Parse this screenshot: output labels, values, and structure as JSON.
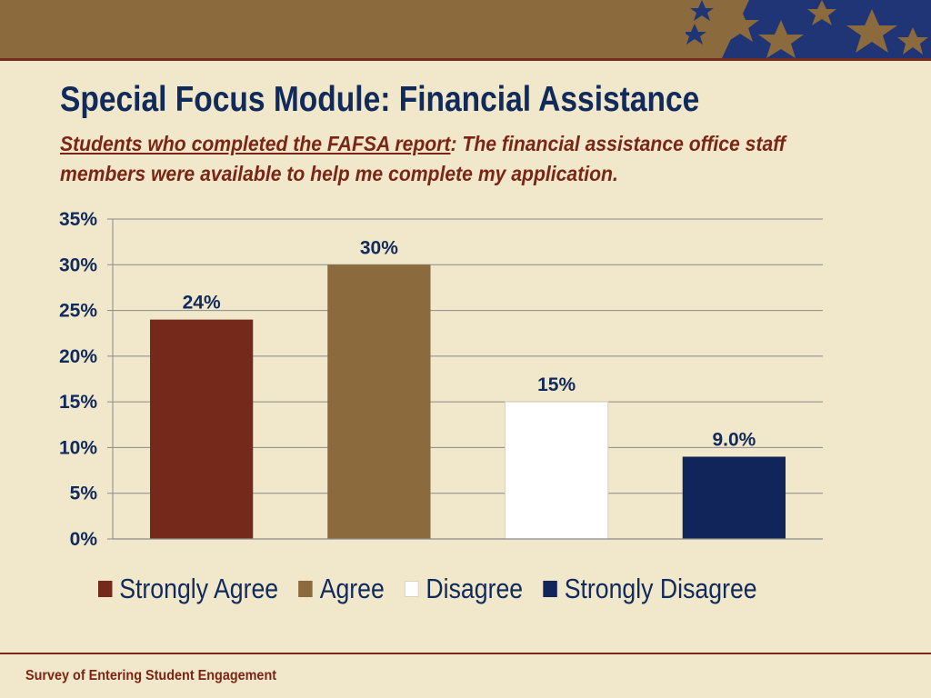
{
  "slide": {
    "title": "Special Focus Module:  Financial Assistance",
    "subtitle_emphasis": "Students who completed the FAFSA report",
    "subtitle_rest": ":  The financial  assistance office staff members were available to help me complete my application.",
    "footer": "Survey of Entering Student Engagement"
  },
  "colors": {
    "background": "#f1e7ca",
    "banner": "#8b6a3e",
    "title": "#102a5c",
    "accent_red": "#7a2515"
  },
  "chart_data": {
    "type": "bar",
    "categories": [
      "Strongly Agree",
      "Agree",
      "Disagree",
      "Strongly Disagree"
    ],
    "values": [
      24,
      30,
      15,
      9
    ],
    "data_labels": [
      "24%",
      "30%",
      "15%",
      "9.0%"
    ],
    "colors": [
      "#74291a",
      "#8b6a3e",
      "#ffffff",
      "#12255a"
    ],
    "ylim": [
      0,
      35
    ],
    "yticks": [
      0,
      5,
      10,
      15,
      20,
      25,
      30,
      35
    ],
    "ytick_labels": [
      "0%",
      "5%",
      "10%",
      "15%",
      "20%",
      "25%",
      "30%",
      "35%"
    ],
    "grid": true,
    "legend_position": "bottom",
    "title": "",
    "xlabel": "",
    "ylabel": ""
  }
}
